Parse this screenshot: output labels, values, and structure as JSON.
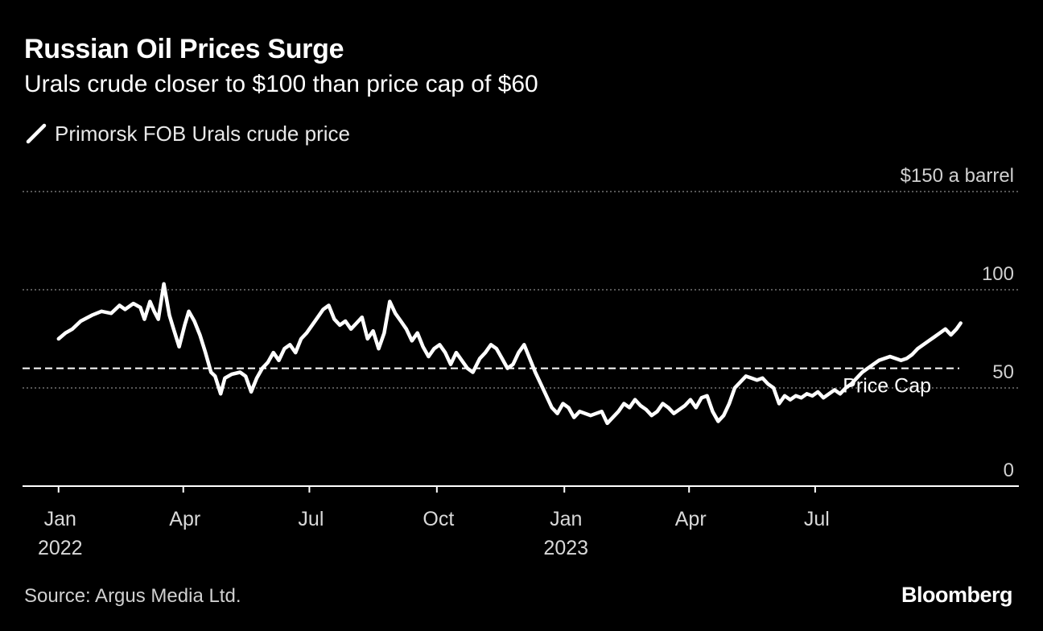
{
  "header": {
    "title": "Russian Oil Prices Surge",
    "subtitle": "Urals crude closer to $100 than price cap of $60"
  },
  "footer": {
    "source": "Source: Argus Media Ltd.",
    "logo": "Bloomberg"
  },
  "colors": {
    "background": "#000000",
    "series": "#ffffff",
    "gridline": "#8a8a8a",
    "text_muted": "#d0d0d0"
  },
  "chart_data": {
    "type": "line",
    "title": "Russian Oil Prices Surge",
    "subtitle": "Urals crude closer to $100 than price cap of $60",
    "ylabel": "",
    "y_unit": "a barrel",
    "ylim": [
      0,
      150
    ],
    "y_ticks": [
      {
        "value": 150,
        "label": "$150"
      },
      {
        "value": 100,
        "label": "100"
      },
      {
        "value": 50,
        "label": "50"
      },
      {
        "value": 0,
        "label": "0"
      }
    ],
    "y_top_unit_label": "a barrel",
    "xlim": [
      "2021-12-06",
      "2023-11-25"
    ],
    "x_ticks": [
      {
        "date": "2022-01-01",
        "label": "Jan",
        "year": "2022"
      },
      {
        "date": "2022-04-01",
        "label": "Apr",
        "year": ""
      },
      {
        "date": "2022-07-01",
        "label": "Jul",
        "year": ""
      },
      {
        "date": "2022-10-01",
        "label": "Oct",
        "year": ""
      },
      {
        "date": "2023-01-01",
        "label": "Jan",
        "year": "2023"
      },
      {
        "date": "2023-04-01",
        "label": "Apr",
        "year": ""
      },
      {
        "date": "2023-07-01",
        "label": "Jul",
        "year": ""
      }
    ],
    "grid": true,
    "legend": "top-left",
    "series": [
      {
        "name": "Primorsk FOB Urals crude price",
        "points": [
          [
            "2022-01-01",
            75
          ],
          [
            "2022-01-06",
            78
          ],
          [
            "2022-01-11",
            80
          ],
          [
            "2022-01-17",
            84
          ],
          [
            "2022-01-25",
            87
          ],
          [
            "2022-02-01",
            89
          ],
          [
            "2022-02-08",
            88
          ],
          [
            "2022-02-14",
            92
          ],
          [
            "2022-02-18",
            90
          ],
          [
            "2022-02-24",
            93
          ],
          [
            "2022-03-01",
            91
          ],
          [
            "2022-03-04",
            85
          ],
          [
            "2022-03-08",
            94
          ],
          [
            "2022-03-11",
            89
          ],
          [
            "2022-03-14",
            85
          ],
          [
            "2022-03-18",
            103
          ],
          [
            "2022-03-22",
            87
          ],
          [
            "2022-03-25",
            80
          ],
          [
            "2022-03-29",
            71
          ],
          [
            "2022-04-02",
            82
          ],
          [
            "2022-04-05",
            89
          ],
          [
            "2022-04-09",
            84
          ],
          [
            "2022-04-13",
            77
          ],
          [
            "2022-04-17",
            68
          ],
          [
            "2022-04-21",
            58
          ],
          [
            "2022-04-24",
            56
          ],
          [
            "2022-04-28",
            47
          ],
          [
            "2022-05-01",
            55
          ],
          [
            "2022-05-06",
            57
          ],
          [
            "2022-05-12",
            58
          ],
          [
            "2022-05-16",
            56
          ],
          [
            "2022-05-20",
            48
          ],
          [
            "2022-05-24",
            55
          ],
          [
            "2022-05-28",
            60
          ],
          [
            "2022-06-01",
            63
          ],
          [
            "2022-06-05",
            68
          ],
          [
            "2022-06-09",
            64
          ],
          [
            "2022-06-13",
            70
          ],
          [
            "2022-06-17",
            72
          ],
          [
            "2022-06-21",
            68
          ],
          [
            "2022-06-25",
            75
          ],
          [
            "2022-06-29",
            78
          ],
          [
            "2022-07-03",
            82
          ],
          [
            "2022-07-07",
            86
          ],
          [
            "2022-07-11",
            90
          ],
          [
            "2022-07-15",
            92
          ],
          [
            "2022-07-19",
            85
          ],
          [
            "2022-07-23",
            82
          ],
          [
            "2022-07-27",
            84
          ],
          [
            "2022-07-31",
            80
          ],
          [
            "2022-08-04",
            83
          ],
          [
            "2022-08-08",
            86
          ],
          [
            "2022-08-12",
            75
          ],
          [
            "2022-08-16",
            79
          ],
          [
            "2022-08-20",
            70
          ],
          [
            "2022-08-24",
            78
          ],
          [
            "2022-08-28",
            94
          ],
          [
            "2022-09-01",
            88
          ],
          [
            "2022-09-05",
            84
          ],
          [
            "2022-09-09",
            80
          ],
          [
            "2022-09-13",
            74
          ],
          [
            "2022-09-17",
            78
          ],
          [
            "2022-09-21",
            71
          ],
          [
            "2022-09-25",
            66
          ],
          [
            "2022-09-29",
            70
          ],
          [
            "2022-10-03",
            72
          ],
          [
            "2022-10-07",
            68
          ],
          [
            "2022-10-11",
            62
          ],
          [
            "2022-10-15",
            68
          ],
          [
            "2022-10-19",
            64
          ],
          [
            "2022-10-23",
            60
          ],
          [
            "2022-10-27",
            58
          ],
          [
            "2022-11-01",
            65
          ],
          [
            "2022-11-05",
            68
          ],
          [
            "2022-11-09",
            72
          ],
          [
            "2022-11-13",
            70
          ],
          [
            "2022-11-17",
            65
          ],
          [
            "2022-11-21",
            60
          ],
          [
            "2022-11-25",
            62
          ],
          [
            "2022-11-29",
            68
          ],
          [
            "2022-12-03",
            72
          ],
          [
            "2022-12-07",
            65
          ],
          [
            "2022-12-11",
            58
          ],
          [
            "2022-12-15",
            52
          ],
          [
            "2022-12-19",
            46
          ],
          [
            "2022-12-23",
            40
          ],
          [
            "2022-12-27",
            37
          ],
          [
            "2022-12-31",
            42
          ],
          [
            "2023-01-04",
            40
          ],
          [
            "2023-01-08",
            35
          ],
          [
            "2023-01-12",
            38
          ],
          [
            "2023-01-16",
            37
          ],
          [
            "2023-01-20",
            36
          ],
          [
            "2023-01-24",
            37
          ],
          [
            "2023-01-28",
            38
          ],
          [
            "2023-02-01",
            32
          ],
          [
            "2023-02-05",
            35
          ],
          [
            "2023-02-09",
            38
          ],
          [
            "2023-02-13",
            42
          ],
          [
            "2023-02-17",
            40
          ],
          [
            "2023-02-21",
            44
          ],
          [
            "2023-02-25",
            41
          ],
          [
            "2023-03-01",
            39
          ],
          [
            "2023-03-05",
            36
          ],
          [
            "2023-03-09",
            38
          ],
          [
            "2023-03-13",
            42
          ],
          [
            "2023-03-17",
            40
          ],
          [
            "2023-03-21",
            37
          ],
          [
            "2023-03-25",
            39
          ],
          [
            "2023-03-29",
            41
          ],
          [
            "2023-04-02",
            44
          ],
          [
            "2023-04-06",
            40
          ],
          [
            "2023-04-10",
            45
          ],
          [
            "2023-04-14",
            46
          ],
          [
            "2023-04-18",
            38
          ],
          [
            "2023-04-22",
            33
          ],
          [
            "2023-04-26",
            36
          ],
          [
            "2023-04-30",
            42
          ],
          [
            "2023-05-04",
            50
          ],
          [
            "2023-05-08",
            53
          ],
          [
            "2023-05-12",
            56
          ],
          [
            "2023-05-16",
            55
          ],
          [
            "2023-05-20",
            54
          ],
          [
            "2023-05-24",
            55
          ],
          [
            "2023-05-28",
            52
          ],
          [
            "2023-06-01",
            50
          ],
          [
            "2023-06-05",
            42
          ],
          [
            "2023-06-09",
            46
          ],
          [
            "2023-06-13",
            44
          ],
          [
            "2023-06-17",
            46
          ],
          [
            "2023-06-21",
            45
          ],
          [
            "2023-06-25",
            47
          ],
          [
            "2023-06-29",
            46
          ],
          [
            "2023-07-03",
            48
          ],
          [
            "2023-07-07",
            45
          ],
          [
            "2023-07-11",
            47
          ],
          [
            "2023-07-15",
            49
          ],
          [
            "2023-07-19",
            47
          ],
          [
            "2023-07-23",
            50
          ],
          [
            "2023-07-27",
            52
          ],
          [
            "2023-07-31",
            55
          ],
          [
            "2023-08-04",
            58
          ],
          [
            "2023-08-08",
            60
          ],
          [
            "2023-08-12",
            62
          ],
          [
            "2023-08-16",
            64
          ],
          [
            "2023-08-20",
            65
          ],
          [
            "2023-08-24",
            66
          ],
          [
            "2023-08-28",
            65
          ],
          [
            "2023-09-01",
            64
          ],
          [
            "2023-09-05",
            65
          ],
          [
            "2023-09-09",
            67
          ],
          [
            "2023-09-13",
            70
          ],
          [
            "2023-09-17",
            72
          ],
          [
            "2023-09-21",
            74
          ],
          [
            "2023-09-25",
            76
          ],
          [
            "2023-09-29",
            78
          ],
          [
            "2023-10-03",
            80
          ],
          [
            "2023-10-07",
            77
          ],
          [
            "2023-10-11",
            80
          ],
          [
            "2023-10-14",
            83
          ]
        ]
      }
    ],
    "annotations": [
      {
        "label": "Price Cap",
        "y": 60,
        "style": "dashed-line"
      }
    ]
  }
}
